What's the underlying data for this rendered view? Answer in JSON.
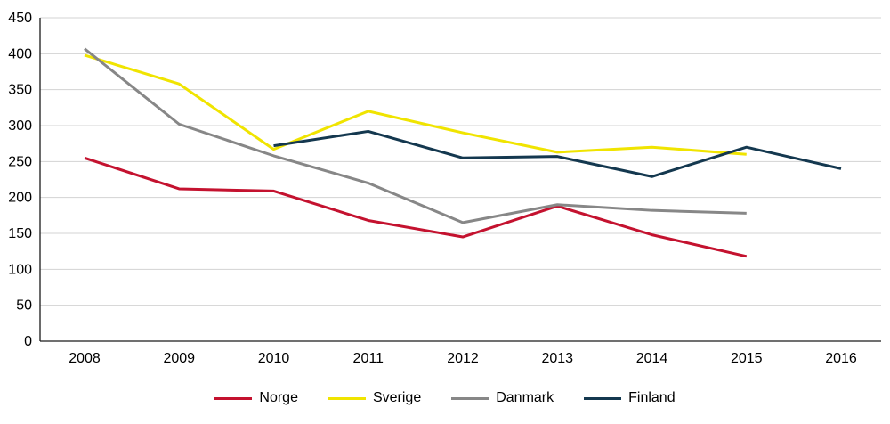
{
  "chart_data": {
    "type": "line",
    "title": "",
    "xlabel": "",
    "ylabel": "",
    "categories": [
      "2008",
      "2009",
      "2010",
      "2011",
      "2012",
      "2013",
      "2014",
      "2015",
      "2016"
    ],
    "ylim": [
      0,
      450
    ],
    "ytick_step": 50,
    "yticks": [
      0,
      50,
      100,
      150,
      200,
      250,
      300,
      350,
      400,
      450
    ],
    "grid": true,
    "legend_position": "bottom",
    "gridline_color": "#d3d3d3",
    "axis_color": "#1a1a1a",
    "series": [
      {
        "name": "Norge",
        "color": "#c4122f",
        "values": [
          255,
          212,
          209,
          168,
          145,
          188,
          148,
          118,
          null
        ]
      },
      {
        "name": "Sverige",
        "color": "#f0e400",
        "values": [
          398,
          358,
          267,
          320,
          290,
          263,
          270,
          260,
          null
        ]
      },
      {
        "name": "Danmark",
        "color": "#878787",
        "values": [
          407,
          302,
          258,
          220,
          165,
          190,
          182,
          178,
          null
        ]
      },
      {
        "name": "Finland",
        "color": "#14384f",
        "values": [
          null,
          null,
          272,
          292,
          255,
          257,
          229,
          270,
          240
        ]
      }
    ]
  }
}
